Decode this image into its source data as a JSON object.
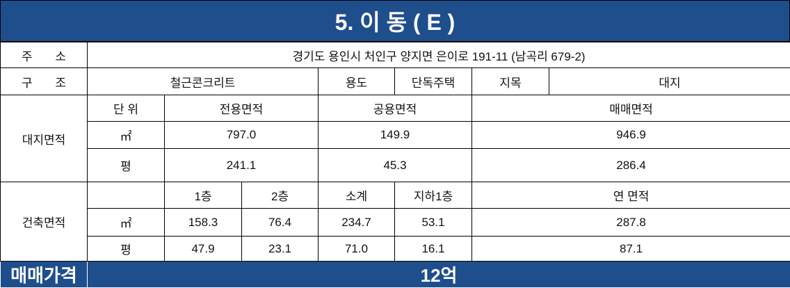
{
  "title": "5. 이 동 ( E )",
  "address": {
    "label": "주 소",
    "value": "경기도 용인시 처인구 양지면 은이로 191-11 (남곡리 679-2)"
  },
  "structure": {
    "label": "구 조",
    "value": "철근콘크리트",
    "use_label": "용도",
    "use": "단독주택",
    "land_category_label": "지목",
    "land_category": "대지"
  },
  "land_area": {
    "label": "대지면적",
    "header": [
      "단 위",
      "전용면적",
      "공용면적",
      "매매면적"
    ],
    "rows": [
      [
        "㎡",
        "797.0",
        "149.9",
        "946.9"
      ],
      [
        "평",
        "241.1",
        "45.3",
        "286.4"
      ]
    ]
  },
  "building_area": {
    "label": "건축면적",
    "header": [
      "1층",
      "2층",
      "소계",
      "지하1층",
      "연 면적"
    ],
    "rows": [
      [
        "㎡",
        "158.3",
        "76.4",
        "234.7",
        "53.1",
        "287.8"
      ],
      [
        "평",
        "47.9",
        "23.1",
        "71.0",
        "16.1",
        "87.1"
      ]
    ]
  },
  "price": {
    "label": "매매가격",
    "value": "12억"
  }
}
